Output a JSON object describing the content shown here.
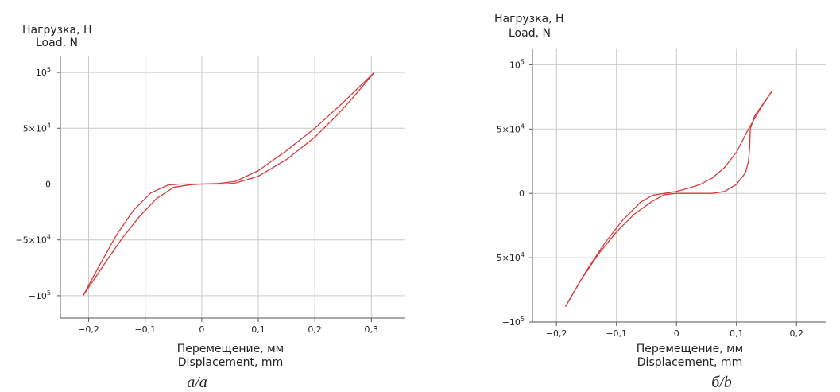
{
  "chart_data": [
    {
      "type": "line",
      "caption": "а/a",
      "ylabel": [
        "Нагрузка, Н",
        "Load, N"
      ],
      "xlabel": [
        "Перемещение, мм",
        "Displacement, mm"
      ],
      "xlim": [
        -0.25,
        0.36
      ],
      "ylim": [
        -120000,
        115000
      ],
      "grid": true,
      "x_ticks": [
        {
          "value": -0.2,
          "label": "−0,2"
        },
        {
          "value": -0.1,
          "label": "−0,1"
        },
        {
          "value": 0,
          "label": "0"
        },
        {
          "value": 0.1,
          "label": "0,1"
        },
        {
          "value": 0.2,
          "label": "0,2"
        },
        {
          "value": 0.3,
          "label": "0,3"
        }
      ],
      "y_ticks": [
        {
          "value": 100000,
          "base": "10",
          "exp": "5"
        },
        {
          "value": 50000,
          "base": "5×10",
          "exp": "4"
        },
        {
          "value": 0,
          "base": "0",
          "exp": ""
        },
        {
          "value": -50000,
          "base": "−5×10",
          "exp": "4"
        },
        {
          "value": -100000,
          "base": "−10",
          "exp": "5"
        }
      ],
      "color": "#d63a3a",
      "series": [
        {
          "x": [
            -0.21,
            -0.18,
            -0.15,
            -0.12,
            -0.09,
            -0.06,
            -0.04,
            -0.02,
            0,
            0.03,
            0.06,
            0.1,
            0.15,
            0.2,
            0.25,
            0.305
          ],
          "y": [
            -100000,
            -72000,
            -45000,
            -23000,
            -8000,
            -1000,
            0,
            0,
            0,
            500,
            2500,
            12000,
            30000,
            50000,
            73000,
            100000
          ]
        },
        {
          "x": [
            0.305,
            0.27,
            0.24,
            0.2,
            0.15,
            0.1,
            0.06,
            0.04,
            0.02,
            0,
            -0.02,
            -0.05,
            -0.08,
            -0.11,
            -0.14,
            -0.17,
            -0.21
          ],
          "y": [
            100000,
            79000,
            62000,
            42000,
            22000,
            7000,
            1000,
            0,
            0,
            0,
            -600,
            -3000,
            -13000,
            -29000,
            -48000,
            -70000,
            -100000
          ]
        }
      ]
    },
    {
      "type": "line",
      "caption": "б/b",
      "ylabel": [
        "Нагрузка, Н",
        "Load, N"
      ],
      "xlabel": [
        "Перемещение, мм",
        "Displacement, mm"
      ],
      "xlim": [
        -0.24,
        0.25
      ],
      "ylim": [
        -100000,
        112000
      ],
      "grid": true,
      "x_ticks": [
        {
          "value": -0.2,
          "label": "−0,2"
        },
        {
          "value": -0.1,
          "label": "−0,1"
        },
        {
          "value": 0,
          "label": "0"
        },
        {
          "value": 0.1,
          "label": "0,1"
        },
        {
          "value": 0.2,
          "label": "0,2"
        }
      ],
      "y_ticks": [
        {
          "value": 100000,
          "base": "10",
          "exp": "5"
        },
        {
          "value": 50000,
          "base": "5×10",
          "exp": "4"
        },
        {
          "value": 0,
          "base": "0",
          "exp": ""
        },
        {
          "value": -50000,
          "base": "−5×10",
          "exp": "4"
        },
        {
          "value": -100000,
          "base": "−10",
          "exp": "5"
        }
      ],
      "color": "#d63a3a",
      "series": [
        {
          "x": [
            -0.185,
            -0.16,
            -0.13,
            -0.1,
            -0.07,
            -0.04,
            -0.02,
            0,
            0.02,
            0.04,
            0.06,
            0.08,
            0.1,
            0.115,
            0.12,
            0.122,
            0.123,
            0.13,
            0.16
          ],
          "y": [
            -88000,
            -68000,
            -47000,
            -30000,
            -16000,
            -6000,
            -1000,
            0,
            0,
            0,
            0,
            1500,
            7000,
            16000,
            25000,
            35000,
            50000,
            60000,
            80000
          ]
        },
        {
          "x": [
            0.16,
            0.14,
            0.12,
            0.1,
            0.08,
            0.06,
            0.04,
            0.02,
            0,
            -0.02,
            -0.04,
            -0.06,
            -0.09,
            -0.12,
            -0.15,
            -0.185
          ],
          "y": [
            80000,
            66000,
            50000,
            32000,
            20000,
            12000,
            7000,
            4000,
            1500,
            0,
            -1500,
            -7000,
            -21000,
            -39000,
            -60000,
            -88000
          ]
        }
      ]
    }
  ]
}
